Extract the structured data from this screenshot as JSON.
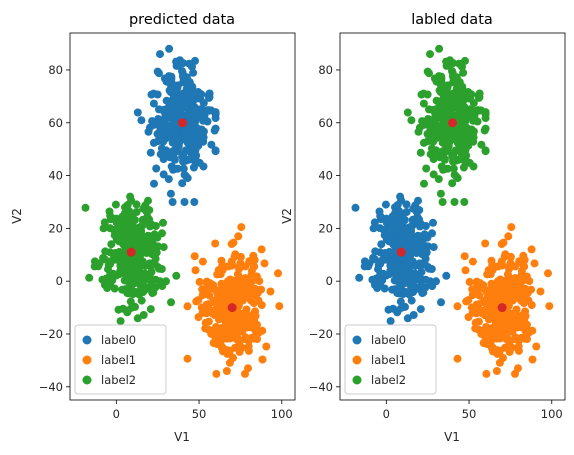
{
  "colors": {
    "label0": "#1f77b4",
    "label1": "#ff7f0e",
    "label2": "#2ca02c",
    "centroid": "#d62728"
  },
  "chart_data": [
    {
      "type": "scatter",
      "title": "predicted data",
      "xlabel": "V1",
      "ylabel": "V2",
      "xlim": [
        -28,
        108
      ],
      "ylim": [
        -45,
        94
      ],
      "xticks": [
        {
          "value": 0,
          "label": "0"
        },
        {
          "value": 50,
          "label": "50"
        },
        {
          "value": 100,
          "label": "100"
        }
      ],
      "yticks": [
        {
          "value": -40,
          "label": "−40"
        },
        {
          "value": -20,
          "label": "−20"
        },
        {
          "value": 0,
          "label": "0"
        },
        {
          "value": 20,
          "label": "20"
        },
        {
          "value": 40,
          "label": "40"
        },
        {
          "value": 60,
          "label": "60"
        },
        {
          "value": 80,
          "label": "80"
        }
      ],
      "legend": {
        "placement": "lower-left",
        "entries": [
          {
            "name": "label0",
            "color": "#1f77b4"
          },
          {
            "name": "label1",
            "color": "#ff7f0e"
          },
          {
            "name": "label2",
            "color": "#2ca02c"
          }
        ]
      },
      "series": [
        {
          "name": "label0",
          "color": "#1f77b4",
          "center": [
            40,
            60
          ],
          "spread": [
            9,
            10
          ],
          "extent": {
            "x": [
              13,
              60
            ],
            "y": [
              30,
              88
            ]
          },
          "n": 320
        },
        {
          "name": "label1",
          "color": "#ff7f0e",
          "center": [
            70,
            -10
          ],
          "spread": [
            10,
            10
          ],
          "extent": {
            "x": [
              43,
              105
            ],
            "y": [
              -38,
              26
            ]
          },
          "n": 320
        },
        {
          "name": "label2",
          "color": "#2ca02c",
          "center": [
            10,
            10
          ],
          "spread": [
            9,
            9
          ],
          "extent": {
            "x": [
              -25,
              38
            ],
            "y": [
              -22,
              40
            ]
          },
          "n": 320
        }
      ],
      "centroids": [
        {
          "x": 40,
          "y": 60
        },
        {
          "x": 70,
          "y": -10
        },
        {
          "x": 9,
          "y": 11
        }
      ]
    },
    {
      "type": "scatter",
      "title": "labled data",
      "xlabel": "V1",
      "ylabel": "V2",
      "xlim": [
        -28,
        108
      ],
      "ylim": [
        -45,
        94
      ],
      "xticks": [
        {
          "value": 0,
          "label": "0"
        },
        {
          "value": 50,
          "label": "50"
        },
        {
          "value": 100,
          "label": "100"
        }
      ],
      "yticks": [
        {
          "value": -40,
          "label": "−40"
        },
        {
          "value": -20,
          "label": "−20"
        },
        {
          "value": 0,
          "label": "0"
        },
        {
          "value": 20,
          "label": "20"
        },
        {
          "value": 40,
          "label": "40"
        },
        {
          "value": 60,
          "label": "60"
        },
        {
          "value": 80,
          "label": "80"
        }
      ],
      "legend": {
        "placement": "lower-left",
        "entries": [
          {
            "name": "label0",
            "color": "#1f77b4"
          },
          {
            "name": "label1",
            "color": "#ff7f0e"
          },
          {
            "name": "label2",
            "color": "#2ca02c"
          }
        ]
      },
      "series": [
        {
          "name": "label0",
          "color": "#1f77b4",
          "center": [
            10,
            10
          ],
          "spread": [
            9,
            9
          ],
          "extent": {
            "x": [
              -25,
              38
            ],
            "y": [
              -22,
              40
            ]
          },
          "n": 320
        },
        {
          "name": "label1",
          "color": "#ff7f0e",
          "center": [
            70,
            -10
          ],
          "spread": [
            10,
            10
          ],
          "extent": {
            "x": [
              43,
              105
            ],
            "y": [
              -38,
              26
            ]
          },
          "n": 320
        },
        {
          "name": "label2",
          "color": "#2ca02c",
          "center": [
            40,
            60
          ],
          "spread": [
            9,
            10
          ],
          "extent": {
            "x": [
              13,
              60
            ],
            "y": [
              30,
              88
            ]
          },
          "n": 320
        }
      ],
      "centroids": [
        {
          "x": 40,
          "y": 60
        },
        {
          "x": 70,
          "y": -10
        },
        {
          "x": 9,
          "y": 11
        }
      ]
    }
  ]
}
